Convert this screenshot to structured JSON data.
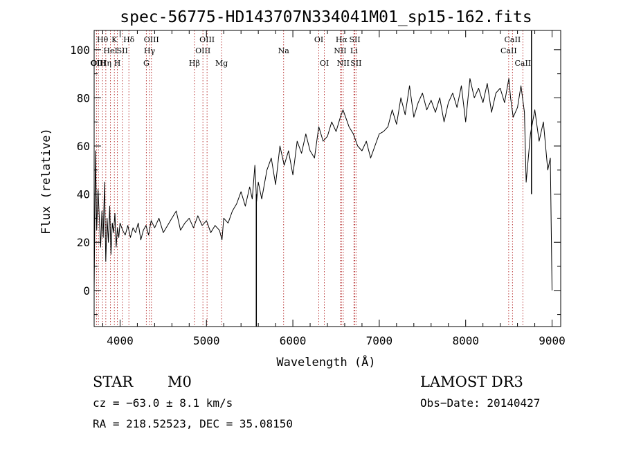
{
  "chart_data": {
    "type": "line",
    "title": "spec-56775-HD143707N334041M01_sp15-162.fits",
    "xlabel": "Wavelength (Å)",
    "ylabel": "Flux (relative)",
    "xlim": [
      3700,
      9100
    ],
    "ylim": [
      -15,
      108
    ],
    "x_ticks": [
      4000,
      5000,
      6000,
      7000,
      8000,
      9000
    ],
    "y_ticks": [
      0,
      20,
      40,
      60,
      80,
      100
    ],
    "x_tick_labels": [
      "4000",
      "5000",
      "6000",
      "7000",
      "8000",
      "9000"
    ],
    "y_tick_labels": [
      "0",
      "20",
      "40",
      "60",
      "80",
      "100"
    ],
    "series": [
      {
        "name": "flux",
        "x": [
          3700,
          3715,
          3730,
          3745,
          3760,
          3775,
          3790,
          3805,
          3820,
          3835,
          3850,
          3865,
          3880,
          3895,
          3910,
          3925,
          3940,
          3955,
          3970,
          3985,
          4000,
          4030,
          4060,
          4090,
          4120,
          4150,
          4180,
          4210,
          4240,
          4270,
          4300,
          4330,
          4360,
          4400,
          4450,
          4500,
          4550,
          4600,
          4650,
          4700,
          4750,
          4800,
          4850,
          4900,
          4950,
          5000,
          5050,
          5100,
          5150,
          5180,
          5200,
          5250,
          5300,
          5350,
          5400,
          5450,
          5500,
          5530,
          5560,
          5580,
          5600,
          5640,
          5700,
          5750,
          5800,
          5850,
          5900,
          5950,
          6000,
          6050,
          6100,
          6150,
          6200,
          6250,
          6300,
          6350,
          6400,
          6450,
          6500,
          6550,
          6580,
          6620,
          6650,
          6700,
          6750,
          6800,
          6850,
          6900,
          6950,
          7000,
          7050,
          7100,
          7150,
          7200,
          7250,
          7300,
          7350,
          7400,
          7450,
          7500,
          7550,
          7600,
          7650,
          7700,
          7750,
          7800,
          7850,
          7900,
          7950,
          8000,
          8050,
          8100,
          8150,
          8200,
          8250,
          8300,
          8350,
          8400,
          8450,
          8500,
          8520,
          8550,
          8600,
          8640,
          8680,
          8700,
          8750,
          8800,
          8850,
          8900,
          8950,
          8980,
          9000
        ],
        "values": [
          0,
          58,
          25,
          42,
          30,
          18,
          33,
          22,
          45,
          12,
          30,
          20,
          35,
          15,
          28,
          24,
          32,
          18,
          26,
          22,
          28,
          25,
          23,
          27,
          22,
          26,
          24,
          28,
          21,
          25,
          27,
          23,
          29,
          26,
          30,
          24,
          27,
          30,
          33,
          25,
          28,
          30,
          26,
          31,
          27,
          29,
          24,
          27,
          25,
          21,
          30,
          28,
          33,
          36,
          41,
          35,
          43,
          38,
          52,
          37,
          45,
          38,
          50,
          55,
          44,
          60,
          52,
          58,
          48,
          62,
          57,
          65,
          58,
          55,
          68,
          62,
          64,
          70,
          66,
          72,
          75,
          71,
          68,
          65,
          60,
          58,
          62,
          55,
          60,
          65,
          66,
          68,
          75,
          69,
          80,
          73,
          85,
          72,
          78,
          82,
          75,
          79,
          74,
          80,
          70,
          78,
          82,
          76,
          85,
          70,
          88,
          80,
          84,
          78,
          86,
          74,
          82,
          84,
          78,
          88,
          80,
          72,
          76,
          85,
          74,
          45,
          65,
          75,
          62,
          70,
          50,
          55,
          0
        ]
      }
    ],
    "spikes": [
      {
        "x": 5577,
        "value": -15
      },
      {
        "x": 8762,
        "value": 108
      }
    ],
    "line_marks": [
      {
        "x": 3727,
        "labels": [
          "OII"
        ],
        "row": 3
      },
      {
        "x": 3750,
        "labels": [
          "OIII"
        ],
        "row": 3
      },
      {
        "x": 3797,
        "labels": [
          "Hθ"
        ],
        "row": 1
      },
      {
        "x": 3835,
        "labels": [
          "Hη"
        ],
        "row": 3
      },
      {
        "x": 3889,
        "labels": [
          "HeI"
        ],
        "row": 2
      },
      {
        "x": 3934,
        "labels": [
          "K"
        ],
        "row": 1
      },
      {
        "x": 3969,
        "labels": [
          "H"
        ],
        "row": 3
      },
      {
        "x": 4026,
        "labels": [
          "SII"
        ],
        "row": 2
      },
      {
        "x": 4102,
        "labels": [
          "Hδ"
        ],
        "row": 1
      },
      {
        "x": 4304,
        "labels": [
          "G"
        ],
        "row": 3
      },
      {
        "x": 4341,
        "labels": [
          "Hγ"
        ],
        "row": 2
      },
      {
        "x": 4363,
        "labels": [
          "OIII"
        ],
        "row": 1
      },
      {
        "x": 4861,
        "labels": [
          "Hβ"
        ],
        "row": 3
      },
      {
        "x": 4959,
        "labels": [
          "OIII"
        ],
        "row": 2
      },
      {
        "x": 5007,
        "labels": [
          "OIII"
        ],
        "row": 1
      },
      {
        "x": 5175,
        "labels": [
          "Mg"
        ],
        "row": 3
      },
      {
        "x": 5893,
        "labels": [
          "Na"
        ],
        "row": 2
      },
      {
        "x": 6300,
        "labels": [
          "OI"
        ],
        "row": 1
      },
      {
        "x": 6364,
        "labels": [
          "OI"
        ],
        "row": 3
      },
      {
        "x": 6548,
        "labels": [
          "NII"
        ],
        "row": 2
      },
      {
        "x": 6563,
        "labels": [
          "Hα"
        ],
        "row": 1
      },
      {
        "x": 6583,
        "labels": [
          "NII"
        ],
        "row": 3
      },
      {
        "x": 6707,
        "labels": [
          "Li"
        ],
        "row": 2
      },
      {
        "x": 6717,
        "labels": [
          "SII"
        ],
        "row": 1
      },
      {
        "x": 6731,
        "labels": [
          "SII"
        ],
        "row": 3
      },
      {
        "x": 8498,
        "labels": [
          "CaII"
        ],
        "row": 2
      },
      {
        "x": 8542,
        "labels": [
          "CaII"
        ],
        "row": 1
      },
      {
        "x": 8662,
        "labels": [
          "CaII"
        ],
        "row": 3
      }
    ]
  },
  "info": {
    "object_class": "STAR",
    "subclass": "M0",
    "survey": "LAMOST DR3",
    "cz": "cz = −63.0 ± 8.1 km/s",
    "obs_date": "Obs−Date: 20140427",
    "coords": "RA = 218.52523, DEC =  35.08150"
  },
  "colors": {
    "axis": "#000000",
    "spectrum": "#000000",
    "line_marker": "#b22222",
    "background": "#ffffff"
  }
}
